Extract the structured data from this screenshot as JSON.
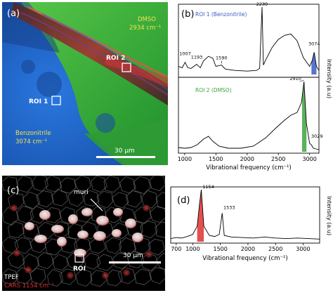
{
  "panels": {
    "a": {
      "label": "(a)",
      "dmso_label": "DMSO",
      "dmso_value": "2934 cm⁻¹",
      "benzonitrile_label": "Benzonitrile",
      "benzonitrile_value": "3074 cm⁻¹",
      "roi1_label": "ROI 1",
      "roi2_label": "ROI 2",
      "scalebar_label": "30 μm"
    },
    "b": {
      "label": "(b)",
      "roi1_title": "ROI 1 (Benzonitrile)",
      "roi2_title": "ROI 2 (DMSO)",
      "ylabel": "Intensity (a.u)",
      "xlabel": "Vibrational frequency (cm⁻¹)",
      "xticks": [
        "1000",
        "1500",
        "2000",
        "2500",
        "3000"
      ],
      "peaks_roi1": [
        "1007",
        "1193",
        "1590",
        "2239",
        "3074"
      ],
      "peaks_roi2": [
        "2910",
        "3029"
      ]
    },
    "c": {
      "label": "(c)",
      "muri_label": "muri",
      "roi_label": "ROI",
      "scalebar_label": "30 μm",
      "legend_tpef": "TPEF",
      "legend_cars": "CARS 1154 cm⁻¹"
    },
    "d": {
      "label": "(d)",
      "ylabel": "Intensity (a.u)",
      "xlabel": "Vibrational frequency (cm⁻¹)",
      "xticks": [
        "700",
        "1000",
        "1500",
        "2000",
        "2500",
        "3000"
      ],
      "peaks": [
        "1154",
        "1533"
      ]
    }
  },
  "colors": {
    "benzonitrile_blue": "#3a5cc8",
    "dmso_green": "#3da33d",
    "cars_red": "#e03030",
    "image_blue": "#1f63c6",
    "image_green": "#2eb82e"
  },
  "chart_data": [
    {
      "type": "line",
      "panel": "b-top",
      "title": "ROI 1 (Benzonitrile)",
      "xlabel": "Vibrational frequency (cm⁻¹)",
      "ylabel": "Intensity (a.u)",
      "xlim": [
        900,
        3150
      ],
      "ylim": [
        0,
        1
      ],
      "x": [
        900,
        960,
        1007,
        1050,
        1100,
        1193,
        1250,
        1300,
        1380,
        1450,
        1500,
        1590,
        1650,
        1800,
        2000,
        2150,
        2200,
        2239,
        2260,
        2300,
        2400,
        2500,
        2600,
        2700,
        2800,
        2900,
        3000,
        3040,
        3074,
        3110,
        3150
      ],
      "y": [
        0.12,
        0.1,
        0.18,
        0.1,
        0.09,
        0.15,
        0.1,
        0.2,
        0.27,
        0.24,
        0.12,
        0.14,
        0.08,
        0.06,
        0.05,
        0.06,
        0.09,
        1.0,
        0.14,
        0.22,
        0.4,
        0.52,
        0.58,
        0.6,
        0.5,
        0.25,
        0.12,
        0.2,
        0.33,
        0.12,
        0.06
      ],
      "peak_labels": [
        1007,
        1193,
        1590,
        2239,
        3074
      ],
      "shaded": {
        "x": [
          3030,
          3110
        ],
        "color": "#3a5cc8"
      }
    },
    {
      "type": "line",
      "panel": "b-bottom",
      "title": "ROI 2 (DMSO)",
      "xlabel": "Vibrational frequency (cm⁻¹)",
      "ylabel": "Intensity (a.u)",
      "xlim": [
        900,
        3150
      ],
      "ylim": [
        0,
        1
      ],
      "x": [
        900,
        1000,
        1100,
        1200,
        1300,
        1380,
        1450,
        1550,
        1700,
        1900,
        2100,
        2300,
        2450,
        2600,
        2700,
        2800,
        2870,
        2910,
        2950,
        3000,
        3029,
        3060,
        3150
      ],
      "y": [
        0.06,
        0.05,
        0.06,
        0.1,
        0.18,
        0.22,
        0.15,
        0.08,
        0.05,
        0.05,
        0.08,
        0.2,
        0.33,
        0.45,
        0.52,
        0.56,
        0.7,
        1.0,
        0.4,
        0.12,
        0.1,
        0.05,
        0.03
      ],
      "peak_labels": [
        2910,
        3029
      ],
      "shaded": {
        "x": [
          2880,
          2950
        ],
        "color": "#3da33d"
      }
    },
    {
      "type": "line",
      "panel": "d",
      "xlabel": "Vibrational frequency (cm⁻¹)",
      "ylabel": "Intensity (a.u)",
      "xlim": [
        600,
        3300
      ],
      "ylim": [
        0,
        1
      ],
      "x": [
        600,
        700,
        800,
        900,
        1000,
        1080,
        1120,
        1154,
        1200,
        1300,
        1400,
        1480,
        1533,
        1570,
        1700,
        1900,
        2100,
        2300,
        2500,
        2700,
        2900,
        3100,
        3300
      ],
      "y": [
        0.06,
        0.08,
        0.07,
        0.1,
        0.14,
        0.3,
        0.7,
        1.0,
        0.3,
        0.12,
        0.1,
        0.14,
        0.55,
        0.12,
        0.09,
        0.08,
        0.07,
        0.09,
        0.07,
        0.06,
        0.07,
        0.06,
        0.05
      ],
      "peak_labels": [
        1154,
        1533
      ],
      "shaded": {
        "x": [
          1080,
          1200
        ],
        "color": "#e03030"
      }
    }
  ]
}
